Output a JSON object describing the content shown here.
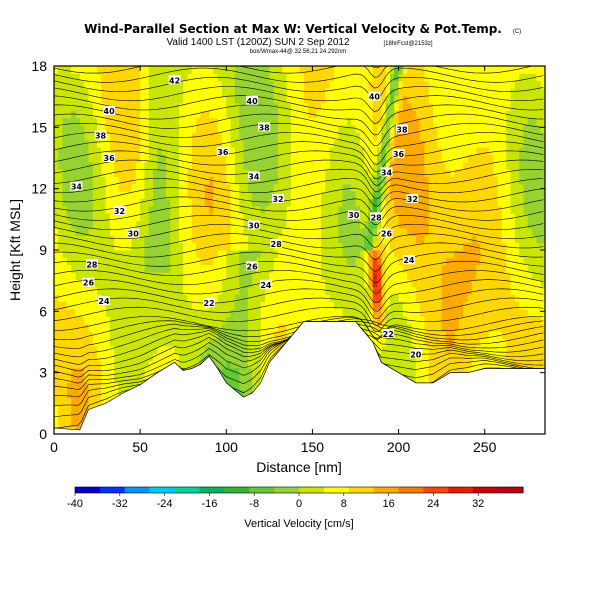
{
  "title": "Wind-Parallel Section at Max W: Vertical Velocity & Pot.Temp.",
  "title_mark": "(C)",
  "subtitle_main": "Valid 1400 LST (1200Z) SUN 2 Sep 2012",
  "subtitle_fcst": "[18hrFcst@2153z]",
  "subtitle_small": "box/Wmax-44@ 32.56,21 24.292nm",
  "chart_data": {
    "type": "heatmap",
    "xlabel": "Distance [nm]",
    "ylabel": "Height [Kft MSL]",
    "xlim": [
      0,
      285
    ],
    "ylim": [
      0,
      18
    ],
    "xticks": [
      0,
      50,
      100,
      150,
      200,
      250
    ],
    "yticks": [
      0,
      3,
      6,
      9,
      12,
      15,
      18
    ],
    "terrain": {
      "x": [
        0,
        15,
        20,
        30,
        40,
        50,
        60,
        70,
        75,
        80,
        85,
        90,
        95,
        100,
        110,
        115,
        120,
        125,
        135,
        140,
        145,
        150,
        155,
        160,
        170,
        175,
        180,
        185,
        190,
        200,
        210,
        220,
        230,
        240,
        250,
        285
      ],
      "height": [
        0.3,
        0.2,
        1.2,
        1.5,
        2.0,
        2.4,
        3.0,
        3.5,
        3.1,
        3.2,
        3.4,
        3.8,
        3.2,
        2.5,
        1.8,
        2.0,
        2.5,
        3.5,
        4.5,
        5.0,
        5.5,
        5.5,
        5.5,
        5.5,
        5.5,
        5.5,
        5.0,
        4.5,
        3.5,
        3.0,
        2.5,
        2.5,
        3.0,
        3.0,
        3.2,
        3.2
      ]
    },
    "theta_contour_labels": [
      {
        "label": "42",
        "x": 70,
        "y": 17.3
      },
      {
        "label": "40",
        "x": 32,
        "y": 15.8
      },
      {
        "label": "40",
        "x": 115,
        "y": 16.3
      },
      {
        "label": "40",
        "x": 186,
        "y": 16.5
      },
      {
        "label": "38",
        "x": 27,
        "y": 14.6
      },
      {
        "label": "38",
        "x": 122,
        "y": 15.0
      },
      {
        "label": "38",
        "x": 202,
        "y": 14.9
      },
      {
        "label": "36",
        "x": 32,
        "y": 13.5
      },
      {
        "label": "36",
        "x": 98,
        "y": 13.8
      },
      {
        "label": "36",
        "x": 200,
        "y": 13.7
      },
      {
        "label": "34",
        "x": 13,
        "y": 12.1
      },
      {
        "label": "34",
        "x": 116,
        "y": 12.6
      },
      {
        "label": "34",
        "x": 193,
        "y": 12.8
      },
      {
        "label": "32",
        "x": 38,
        "y": 10.9
      },
      {
        "label": "32",
        "x": 130,
        "y": 11.5
      },
      {
        "label": "32",
        "x": 208,
        "y": 11.5
      },
      {
        "label": "30",
        "x": 46,
        "y": 9.8
      },
      {
        "label": "30",
        "x": 116,
        "y": 10.2
      },
      {
        "label": "30",
        "x": 174,
        "y": 10.7
      },
      {
        "label": "28",
        "x": 22,
        "y": 8.3
      },
      {
        "label": "28",
        "x": 129,
        "y": 9.3
      },
      {
        "label": "28",
        "x": 187,
        "y": 10.6
      },
      {
        "label": "26",
        "x": 20,
        "y": 7.4
      },
      {
        "label": "26",
        "x": 115,
        "y": 8.2
      },
      {
        "label": "26",
        "x": 193,
        "y": 9.8
      },
      {
        "label": "24",
        "x": 29,
        "y": 6.5
      },
      {
        "label": "24",
        "x": 123,
        "y": 7.3
      },
      {
        "label": "24",
        "x": 206,
        "y": 8.5
      },
      {
        "label": "22",
        "x": 90,
        "y": 6.4
      },
      {
        "label": "22",
        "x": 194,
        "y": 4.9
      },
      {
        "label": "20",
        "x": 210,
        "y": 3.9
      }
    ]
  },
  "colorbar": {
    "label": "Vertical Velocity [cm/s]",
    "min": -40,
    "max": 40,
    "ticks": [
      "-40",
      "-32",
      "-24",
      "-16",
      "-8",
      "0",
      "8",
      "16",
      "24",
      "32"
    ],
    "colors": [
      "#0000c8",
      "#0032ff",
      "#0096ff",
      "#00c8ff",
      "#00d2a0",
      "#00b464",
      "#32b432",
      "#64c832",
      "#96d232",
      "#c8e600",
      "#ffff00",
      "#ffd700",
      "#ffaa00",
      "#ff7800",
      "#ff4600",
      "#e61e00",
      "#c80000",
      "#b40014"
    ]
  }
}
